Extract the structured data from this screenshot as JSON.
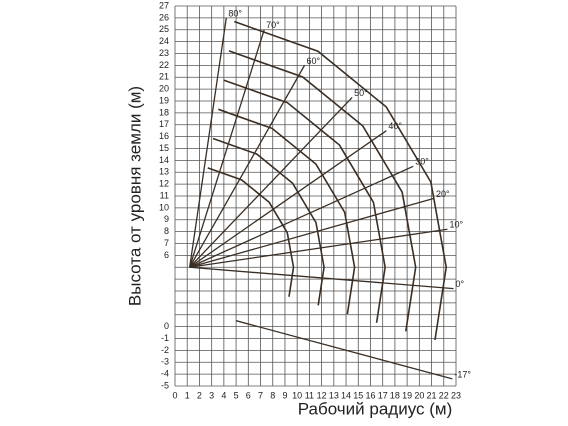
{
  "chart_data": {
    "type": "range",
    "x_label": "Рабочий радиус (м)",
    "y_label": "Высота от уровня земли (м)",
    "xlim": [
      0,
      23
    ],
    "ylim": [
      -5,
      27
    ],
    "xticks": [
      0,
      1,
      2,
      3,
      4,
      5,
      6,
      7,
      8,
      9,
      10,
      11,
      12,
      13,
      14,
      15,
      16,
      17,
      18,
      19,
      20,
      21,
      22,
      23
    ],
    "yticks": [
      -5,
      -4,
      -3,
      -2,
      -1,
      0,
      {
        "value": 1,
        "label": null
      },
      {
        "value": 2,
        "label": null
      },
      {
        "value": 3,
        "label": null
      },
      {
        "value": 4,
        "label": null
      },
      {
        "value": 5,
        "label": null
      },
      6,
      7,
      8,
      9,
      10,
      11,
      12,
      13,
      14,
      15,
      16,
      17,
      18,
      19,
      20,
      21,
      22,
      23,
      24,
      25,
      26,
      27
    ],
    "grid": true,
    "color": "#3b2f25",
    "rays": [
      {
        "label": "80°",
        "x": [
          1.2,
          4.2
        ],
        "y": [
          5,
          26
        ]
      },
      {
        "label": "70°",
        "x": [
          1.2,
          7.3
        ],
        "y": [
          5,
          25
        ]
      },
      {
        "label": "60°",
        "x": [
          1.2,
          10.6
        ],
        "y": [
          5,
          22
        ]
      },
      {
        "label": "50°",
        "x": [
          1.2,
          14.5
        ],
        "y": [
          5,
          19.3
        ]
      },
      {
        "label": "40°",
        "x": [
          1.2,
          17.3
        ],
        "y": [
          5,
          16.5
        ]
      },
      {
        "label": "30°",
        "x": [
          1.2,
          19.5
        ],
        "y": [
          5,
          13.5
        ]
      },
      {
        "label": "20°",
        "x": [
          1.2,
          21.2
        ],
        "y": [
          5,
          10.8
        ]
      },
      {
        "label": "10°",
        "x": [
          1.2,
          22.3
        ],
        "y": [
          5,
          8.2
        ]
      },
      {
        "label": "0°",
        "x": [
          1.2,
          22.8
        ],
        "y": [
          5,
          3.2
        ]
      },
      {
        "label": "-17°",
        "x": [
          5,
          22.7
        ],
        "y": [
          0.5,
          -4.4
        ]
      }
    ],
    "curves": [
      {
        "x": [
          4.85,
          11.7,
          17.29,
          20.94,
          22.2,
          21.28
        ],
        "y": [
          25.69,
          23.19,
          18.5,
          12.18,
          5,
          -1.13
        ]
      },
      {
        "x": [
          4.42,
          10.45,
          15.37,
          18.59,
          19.7,
          18.89
        ],
        "y": [
          23.22,
          21.02,
          16.9,
          11.33,
          5,
          -0.4
        ]
      },
      {
        "x": [
          3.98,
          9.2,
          13.46,
          16.24,
          17.2,
          16.5
        ],
        "y": [
          20.76,
          18.86,
          15.29,
          10.47,
          5,
          0.33
        ]
      },
      {
        "x": [
          3.55,
          7.95,
          11.54,
          13.89,
          14.7,
          14.11
        ],
        "y": [
          18.3,
          16.69,
          13.68,
          9.62,
          5,
          1.06
        ]
      },
      {
        "x": [
          3.11,
          6.7,
          9.63,
          11.54,
          12.2,
          11.72
        ],
        "y": [
          15.84,
          14.53,
          12.07,
          8.76,
          5,
          1.79
        ]
      },
      {
        "x": [
          2.68,
          5.45,
          7.71,
          9.19,
          9.7,
          9.33
        ],
        "y": [
          13.37,
          12.36,
          10.47,
          7.91,
          5,
          2.52
        ]
      }
    ]
  }
}
